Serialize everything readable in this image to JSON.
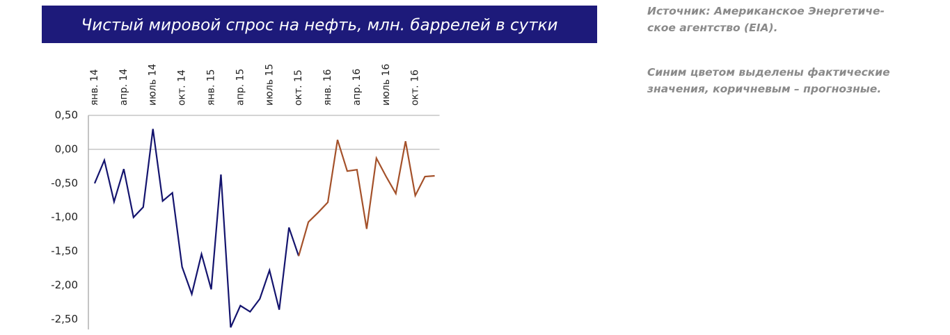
{
  "chart_data": {
    "type": "line",
    "title": "Чистый мировой спрос на нефть, млн. баррелей в сутки",
    "categories": [
      "янв. 14",
      null,
      null,
      "апр. 14",
      null,
      null,
      "июль 14",
      null,
      null,
      "окт. 14",
      null,
      null,
      "янв. 15",
      null,
      null,
      "апр. 15",
      null,
      null,
      "июль 15",
      null,
      null,
      "окт. 15",
      null,
      null,
      "янв. 16",
      null,
      null,
      "апр. 16",
      null,
      null,
      "июль 16",
      null,
      null,
      "окт. 16",
      null,
      null
    ],
    "series": [
      {
        "color": "#14146e",
        "values": [
          -0.5,
          -0.16,
          -0.77,
          -0.29,
          -1.0,
          -0.85,
          0.3,
          -0.76,
          -0.64,
          -1.73,
          -2.13,
          -1.54,
          -2.06,
          -0.37,
          -2.62,
          -2.3,
          -2.39,
          -2.2,
          -1.78,
          -2.36,
          -1.15,
          -1.57,
          null,
          null,
          null,
          null,
          null,
          null,
          null,
          null,
          null,
          null,
          null,
          null,
          null,
          null
        ]
      },
      {
        "color": "#a4512a",
        "values": [
          null,
          null,
          null,
          null,
          null,
          null,
          null,
          null,
          null,
          null,
          null,
          null,
          null,
          null,
          null,
          null,
          null,
          null,
          null,
          null,
          null,
          -1.57,
          -1.07,
          -0.93,
          -0.78,
          0.14,
          -0.32,
          -0.3,
          -1.17,
          -0.13,
          -0.4,
          -0.65,
          0.12,
          -0.68,
          -0.4,
          -0.39
        ]
      }
    ],
    "ylim": [
      -2.65,
      0.5
    ],
    "yticks": [
      {
        "value": 0.5,
        "label": "0,50"
      },
      {
        "value": 0,
        "label": "0,00"
      },
      {
        "value": -0.5,
        "label": "-0,50"
      },
      {
        "value": -1,
        "label": "-1,00"
      },
      {
        "value": -1.5,
        "label": "-1,50"
      },
      {
        "value": -2,
        "label": "-2,00"
      },
      {
        "value": -2.5,
        "label": "-2,50"
      }
    ],
    "grid": false
  },
  "notes": [
    [
      "Источник: Американское Энергетиче-",
      "ское агентство (EIA)."
    ],
    [
      "Синим цветом выделены фактические",
      "значения, коричневым – прогнозные."
    ]
  ]
}
